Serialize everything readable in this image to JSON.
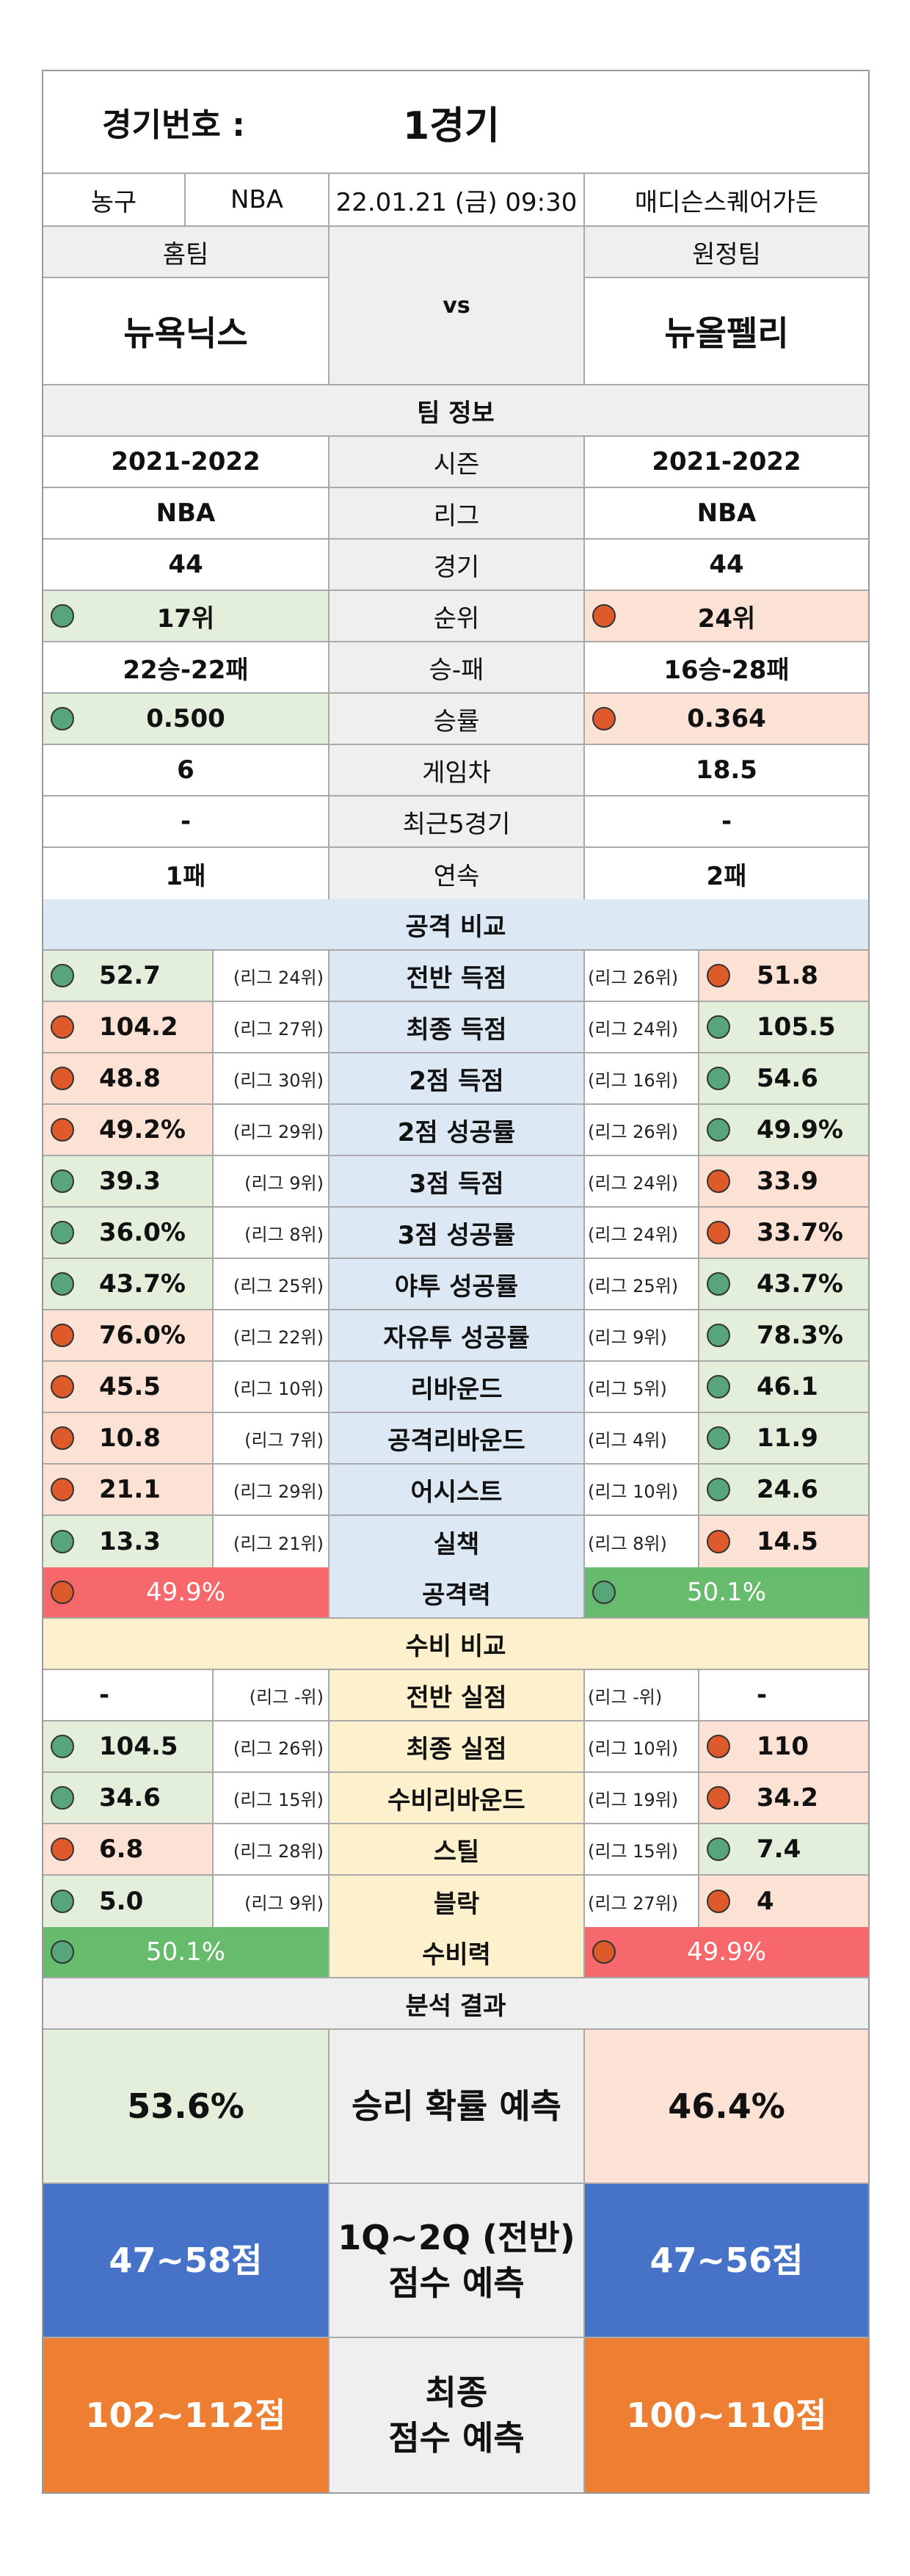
{
  "match": {
    "label": "경기번호 :",
    "value": "1경기",
    "sport": "농구",
    "league": "NBA",
    "datetime": "22.01.21 (금) 09:30",
    "venue": "매디슨스퀘어가든"
  },
  "teams": {
    "home_label": "홈팀",
    "away_label": "원정팀",
    "vs": "vs",
    "home": "뉴욕닉스",
    "away": "뉴올펠리"
  },
  "team_info": {
    "title": "팀 정보",
    "rows": [
      {
        "label": "시즌",
        "home": "2021-2022",
        "away": "2021-2022",
        "home_mark": "",
        "away_mark": ""
      },
      {
        "label": "리그",
        "home": "NBA",
        "away": "NBA",
        "home_mark": "",
        "away_mark": ""
      },
      {
        "label": "경기",
        "home": "44",
        "away": "44",
        "home_mark": "",
        "away_mark": ""
      },
      {
        "label": "순위",
        "home": "17위",
        "away": "24위",
        "home_mark": "green",
        "away_mark": "red"
      },
      {
        "label": "승-패",
        "home": "22승-22패",
        "away": "16승-28패",
        "home_mark": "",
        "away_mark": ""
      },
      {
        "label": "승률",
        "home": "0.500",
        "away": "0.364",
        "home_mark": "green",
        "away_mark": "red"
      },
      {
        "label": "게임차",
        "home": "6",
        "away": "18.5",
        "home_mark": "",
        "away_mark": ""
      },
      {
        "label": "최근5경기",
        "home": "-",
        "away": "-",
        "home_mark": "",
        "away_mark": ""
      },
      {
        "label": "연속",
        "home": "1패",
        "away": "2패",
        "home_mark": "",
        "away_mark": ""
      }
    ]
  },
  "attack": {
    "title": "공격 비교",
    "rows": [
      {
        "label": "전반 득점",
        "home": "52.7",
        "home_rank": "(리그 24위)",
        "home_mark": "green",
        "away": "51.8",
        "away_rank": "(리그 26위)",
        "away_mark": "red"
      },
      {
        "label": "최종 득점",
        "home": "104.2",
        "home_rank": "(리그 27위)",
        "home_mark": "red",
        "away": "105.5",
        "away_rank": "(리그 24위)",
        "away_mark": "green"
      },
      {
        "label": "2점 득점",
        "home": "48.8",
        "home_rank": "(리그 30위)",
        "home_mark": "red",
        "away": "54.6",
        "away_rank": "(리그 16위)",
        "away_mark": "green"
      },
      {
        "label": "2점 성공률",
        "home": "49.2%",
        "home_rank": "(리그 29위)",
        "home_mark": "red",
        "away": "49.9%",
        "away_rank": "(리그 26위)",
        "away_mark": "green"
      },
      {
        "label": "3점 득점",
        "home": "39.3",
        "home_rank": "(리그 9위)",
        "home_mark": "green",
        "away": "33.9",
        "away_rank": "(리그 24위)",
        "away_mark": "red"
      },
      {
        "label": "3점 성공률",
        "home": "36.0%",
        "home_rank": "(리그 8위)",
        "home_mark": "green",
        "away": "33.7%",
        "away_rank": "(리그 24위)",
        "away_mark": "red"
      },
      {
        "label": "야투 성공률",
        "home": "43.7%",
        "home_rank": "(리그 25위)",
        "home_mark": "green",
        "away": "43.7%",
        "away_rank": "(리그 25위)",
        "away_mark": "green"
      },
      {
        "label": "자유투 성공률",
        "home": "76.0%",
        "home_rank": "(리그 22위)",
        "home_mark": "red",
        "away": "78.3%",
        "away_rank": "(리그 9위)",
        "away_mark": "green"
      },
      {
        "label": "리바운드",
        "home": "45.5",
        "home_rank": "(리그 10위)",
        "home_mark": "red",
        "away": "46.1",
        "away_rank": "(리그 5위)",
        "away_mark": "green"
      },
      {
        "label": "공격리바운드",
        "home": "10.8",
        "home_rank": "(리그 7위)",
        "home_mark": "red",
        "away": "11.9",
        "away_rank": "(리그 4위)",
        "away_mark": "green"
      },
      {
        "label": "어시스트",
        "home": "21.1",
        "home_rank": "(리그 29위)",
        "home_mark": "red",
        "away": "24.6",
        "away_rank": "(리그 10위)",
        "away_mark": "green"
      },
      {
        "label": "실책",
        "home": "13.3",
        "home_rank": "(리그 21위)",
        "home_mark": "green",
        "away": "14.5",
        "away_rank": "(리그 8위)",
        "away_mark": "red"
      }
    ],
    "power": {
      "label": "공격력",
      "home": "49.9%",
      "home_mark": "red",
      "away": "50.1%",
      "away_mark": "green"
    }
  },
  "defense": {
    "title": "수비 비교",
    "rows": [
      {
        "label": "전반 실점",
        "home": "-",
        "home_rank": "(리그 -위)",
        "home_mark": "",
        "away": "-",
        "away_rank": "(리그 -위)",
        "away_mark": ""
      },
      {
        "label": "최종 실점",
        "home": "104.5",
        "home_rank": "(리그 26위)",
        "home_mark": "green",
        "away": "110",
        "away_rank": "(리그 10위)",
        "away_mark": "red"
      },
      {
        "label": "수비리바운드",
        "home": "34.6",
        "home_rank": "(리그 15위)",
        "home_mark": "green",
        "away": "34.2",
        "away_rank": "(리그 19위)",
        "away_mark": "red"
      },
      {
        "label": "스틸",
        "home": "6.8",
        "home_rank": "(리그 28위)",
        "home_mark": "red",
        "away": "7.4",
        "away_rank": "(리그 15위)",
        "away_mark": "green"
      },
      {
        "label": "블락",
        "home": "5.0",
        "home_rank": "(리그 9위)",
        "home_mark": "green",
        "away": "4",
        "away_rank": "(리그 27위)",
        "away_mark": "red"
      }
    ],
    "power": {
      "label": "수비력",
      "home": "50.1%",
      "home_mark": "green",
      "away": "49.9%",
      "away_mark": "red"
    }
  },
  "analysis": {
    "title": "분석 결과",
    "win": {
      "label": "승리 확률 예측",
      "home": "53.6%",
      "away": "46.4%"
    },
    "half": {
      "label_line1": "1Q~2Q (전반)",
      "label_line2": "점수 예측",
      "home": "47~58점",
      "away": "47~56점"
    },
    "final": {
      "label_line1": "최종",
      "label_line2": "점수 예측",
      "home": "102~112점",
      "away": "100~110점"
    }
  },
  "colors": {
    "good": "#58a57c",
    "bad": "#de5a2a",
    "good_bg": "#e3eedb",
    "bad_bg": "#fbe2d5",
    "attack_bg": "#dce9f5",
    "defense_bg": "#fdf1cd",
    "half_bg": "#4672c8",
    "final_bg": "#ee7e32"
  }
}
